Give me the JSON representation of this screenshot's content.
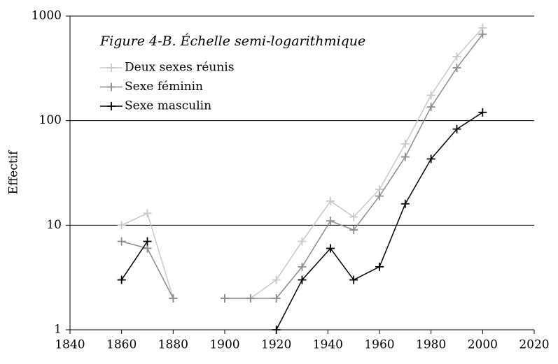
{
  "chart_data": {
    "type": "line",
    "title": "Figure 4-B. Échelle semi-logarithmique",
    "ylabel": "Effectif",
    "x": [
      1860,
      1870,
      1880,
      1890,
      1900,
      1910,
      1920,
      1930,
      1941,
      1950,
      1960,
      1970,
      1980,
      1990,
      2000
    ],
    "series": [
      {
        "name": "Deux sexes réunis",
        "color": "#c8c8c8",
        "values": [
          10,
          13,
          2,
          null,
          2,
          2,
          3,
          7,
          17,
          12,
          22,
          60,
          175,
          410,
          770
        ]
      },
      {
        "name": "Sexe féminin",
        "color": "#8c8c8c",
        "values": [
          7,
          6,
          2,
          null,
          2,
          2,
          2,
          4,
          11,
          9,
          19,
          45,
          135,
          320,
          670
        ]
      },
      {
        "name": "Sexe masculin",
        "color": "#000000",
        "values": [
          3,
          7,
          null,
          null,
          null,
          null,
          1,
          3,
          6,
          3,
          4,
          16,
          43,
          83,
          120
        ]
      }
    ],
    "xlim": [
      1840,
      2020
    ],
    "xticks": [
      1840,
      1860,
      1880,
      1900,
      1920,
      1940,
      1960,
      1980,
      2000,
      2020
    ],
    "ylim": [
      1,
      1000
    ],
    "yticks": [
      1,
      10,
      100,
      1000
    ],
    "ylog": true,
    "grid": true,
    "legend": "upper left"
  }
}
